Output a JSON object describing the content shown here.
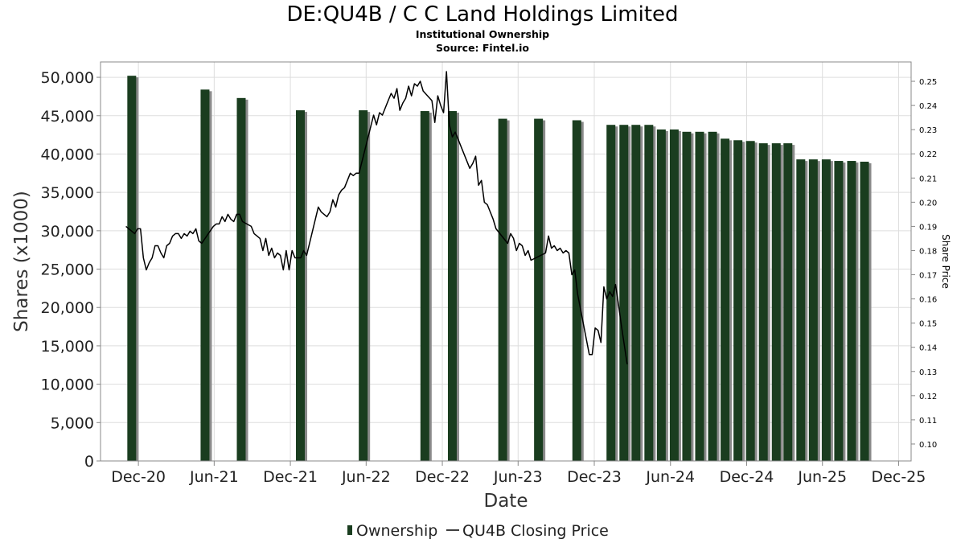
{
  "chart_data": {
    "type": "bar",
    "title": "DE:QU4B / C C Land Holdings Limited",
    "subtitle_1": "Institutional Ownership",
    "subtitle_2": "Source: Fintel.io",
    "xlabel": "Date",
    "ylabel": "Shares (x1000)",
    "y2label": "Share Price",
    "ylim": [
      0,
      52000
    ],
    "y2lim": [
      0.093,
      0.258
    ],
    "x_range": [
      "2020-09-01",
      "2025-12-31"
    ],
    "x_ticks": [
      {
        "date": "2020-12-01",
        "label": "Dec-20"
      },
      {
        "date": "2021-06-01",
        "label": "Jun-21"
      },
      {
        "date": "2021-12-01",
        "label": "Dec-21"
      },
      {
        "date": "2022-06-01",
        "label": "Jun-22"
      },
      {
        "date": "2022-12-01",
        "label": "Dec-22"
      },
      {
        "date": "2023-06-01",
        "label": "Jun-23"
      },
      {
        "date": "2023-12-01",
        "label": "Dec-23"
      },
      {
        "date": "2024-06-01",
        "label": "Jun-24"
      },
      {
        "date": "2024-12-01",
        "label": "Dec-24"
      },
      {
        "date": "2025-06-01",
        "label": "Jun-25"
      },
      {
        "date": "2025-12-01",
        "label": "Dec-25"
      }
    ],
    "y_ticks": [
      {
        "value": 0,
        "label": "0"
      },
      {
        "value": 5000,
        "label": "5,000"
      },
      {
        "value": 10000,
        "label": "10,000"
      },
      {
        "value": 15000,
        "label": "15,000"
      },
      {
        "value": 20000,
        "label": "20,000"
      },
      {
        "value": 25000,
        "label": "25,000"
      },
      {
        "value": 30000,
        "label": "30,000"
      },
      {
        "value": 35000,
        "label": "35,000"
      },
      {
        "value": 40000,
        "label": "40,000"
      },
      {
        "value": 45000,
        "label": "45,000"
      },
      {
        "value": 50000,
        "label": "50,000"
      }
    ],
    "y2_ticks": [
      {
        "value": 0.1,
        "label": "0.10"
      },
      {
        "value": 0.11,
        "label": "0.11"
      },
      {
        "value": 0.12,
        "label": "0.12"
      },
      {
        "value": 0.13,
        "label": "0.13"
      },
      {
        "value": 0.14,
        "label": "0.14"
      },
      {
        "value": 0.15,
        "label": "0.15"
      },
      {
        "value": 0.16,
        "label": "0.16"
      },
      {
        "value": 0.17,
        "label": "0.17"
      },
      {
        "value": 0.18,
        "label": "0.18"
      },
      {
        "value": 0.19,
        "label": "0.19"
      },
      {
        "value": 0.2,
        "label": "0.20"
      },
      {
        "value": 0.21,
        "label": "0.21"
      },
      {
        "value": 0.22,
        "label": "0.22"
      },
      {
        "value": 0.23,
        "label": "0.23"
      },
      {
        "value": 0.24,
        "label": "0.24"
      },
      {
        "value": 0.25,
        "label": "0.25"
      }
    ],
    "grid": true,
    "legend_placement": "bottom-center",
    "colors": {
      "bar": "#1a3d1f",
      "bar_shadow": "#8a8a8a",
      "line": "#000000",
      "grid": "#dddddd",
      "axis": "#888888"
    },
    "series": [
      {
        "name": "Ownership",
        "type": "bar",
        "points": [
          {
            "date": "2020-11-15",
            "value": 50200
          },
          {
            "date": "2021-05-10",
            "value": 48400
          },
          {
            "date": "2021-08-05",
            "value": 47300
          },
          {
            "date": "2021-12-25",
            "value": 45700
          },
          {
            "date": "2022-05-25",
            "value": 45700
          },
          {
            "date": "2022-10-20",
            "value": 45600
          },
          {
            "date": "2022-12-25",
            "value": 45600
          },
          {
            "date": "2023-04-25",
            "value": 44600
          },
          {
            "date": "2023-07-20",
            "value": 44600
          },
          {
            "date": "2023-10-20",
            "value": 44400
          },
          {
            "date": "2024-01-10",
            "value": 43800
          },
          {
            "date": "2024-02-10",
            "value": 43800
          },
          {
            "date": "2024-03-10",
            "value": 43800
          },
          {
            "date": "2024-04-10",
            "value": 43800
          },
          {
            "date": "2024-05-10",
            "value": 43200
          },
          {
            "date": "2024-06-10",
            "value": 43200
          },
          {
            "date": "2024-07-10",
            "value": 42900
          },
          {
            "date": "2024-08-10",
            "value": 42900
          },
          {
            "date": "2024-09-10",
            "value": 42900
          },
          {
            "date": "2024-10-10",
            "value": 42000
          },
          {
            "date": "2024-11-10",
            "value": 41800
          },
          {
            "date": "2024-12-10",
            "value": 41700
          },
          {
            "date": "2025-01-10",
            "value": 41400
          },
          {
            "date": "2025-02-10",
            "value": 41400
          },
          {
            "date": "2025-03-10",
            "value": 41400
          },
          {
            "date": "2025-04-10",
            "value": 39300
          },
          {
            "date": "2025-05-10",
            "value": 39300
          },
          {
            "date": "2025-06-10",
            "value": 39300
          },
          {
            "date": "2025-07-10",
            "value": 39100
          },
          {
            "date": "2025-08-10",
            "value": 39100
          },
          {
            "date": "2025-09-10",
            "value": 39000
          }
        ]
      },
      {
        "name": "QU4B Closing Price",
        "type": "line",
        "points": [
          [
            "2020-11-01",
            0.19
          ],
          [
            "2020-11-22",
            0.187
          ],
          [
            "2020-11-29",
            0.189
          ],
          [
            "2020-12-06",
            0.189
          ],
          [
            "2020-12-13",
            0.177
          ],
          [
            "2020-12-20",
            0.172
          ],
          [
            "2020-12-27",
            0.175
          ],
          [
            "2021-01-03",
            0.177
          ],
          [
            "2021-01-10",
            0.182
          ],
          [
            "2021-01-17",
            0.182
          ],
          [
            "2021-01-24",
            0.179
          ],
          [
            "2021-01-31",
            0.177
          ],
          [
            "2021-02-07",
            0.182
          ],
          [
            "2021-02-14",
            0.183
          ],
          [
            "2021-02-21",
            0.186
          ],
          [
            "2021-02-28",
            0.187
          ],
          [
            "2021-03-07",
            0.187
          ],
          [
            "2021-03-14",
            0.185
          ],
          [
            "2021-03-21",
            0.187
          ],
          [
            "2021-03-28",
            0.186
          ],
          [
            "2021-04-04",
            0.188
          ],
          [
            "2021-04-11",
            0.187
          ],
          [
            "2021-04-18",
            0.189
          ],
          [
            "2021-04-25",
            0.184
          ],
          [
            "2021-05-02",
            0.183
          ],
          [
            "2021-05-30",
            0.19
          ],
          [
            "2021-06-06",
            0.191
          ],
          [
            "2021-06-13",
            0.191
          ],
          [
            "2021-06-20",
            0.194
          ],
          [
            "2021-06-27",
            0.192
          ],
          [
            "2021-07-04",
            0.195
          ],
          [
            "2021-07-11",
            0.193
          ],
          [
            "2021-07-18",
            0.192
          ],
          [
            "2021-07-25",
            0.195
          ],
          [
            "2021-08-01",
            0.195
          ],
          [
            "2021-08-08",
            0.192
          ],
          [
            "2021-08-29",
            0.19
          ],
          [
            "2021-09-05",
            0.187
          ],
          [
            "2021-09-12",
            0.186
          ],
          [
            "2021-09-19",
            0.185
          ],
          [
            "2021-09-26",
            0.18
          ],
          [
            "2021-10-03",
            0.185
          ],
          [
            "2021-10-10",
            0.178
          ],
          [
            "2021-10-17",
            0.181
          ],
          [
            "2021-10-24",
            0.177
          ],
          [
            "2021-10-31",
            0.179
          ],
          [
            "2021-11-07",
            0.178
          ],
          [
            "2021-11-14",
            0.172
          ],
          [
            "2021-11-21",
            0.18
          ],
          [
            "2021-11-28",
            0.172
          ],
          [
            "2021-12-05",
            0.18
          ],
          [
            "2021-12-12",
            0.177
          ],
          [
            "2021-12-19",
            0.177
          ],
          [
            "2021-12-26",
            0.177
          ],
          [
            "2022-01-02",
            0.18
          ],
          [
            "2022-01-09",
            0.178
          ],
          [
            "2022-02-06",
            0.198
          ],
          [
            "2022-02-13",
            0.196
          ],
          [
            "2022-02-20",
            0.195
          ],
          [
            "2022-02-27",
            0.194
          ],
          [
            "2022-03-06",
            0.196
          ],
          [
            "2022-03-13",
            0.201
          ],
          [
            "2022-03-20",
            0.198
          ],
          [
            "2022-03-27",
            0.203
          ],
          [
            "2022-04-03",
            0.205
          ],
          [
            "2022-04-10",
            0.206
          ],
          [
            "2022-04-17",
            0.209
          ],
          [
            "2022-04-24",
            0.212
          ],
          [
            "2022-05-01",
            0.211
          ],
          [
            "2022-05-08",
            0.212
          ],
          [
            "2022-05-15",
            0.212
          ],
          [
            "2022-06-19",
            0.236
          ],
          [
            "2022-06-26",
            0.232
          ],
          [
            "2022-07-03",
            0.237
          ],
          [
            "2022-07-10",
            0.236
          ],
          [
            "2022-07-17",
            0.239
          ],
          [
            "2022-07-24",
            0.242
          ],
          [
            "2022-07-31",
            0.245
          ],
          [
            "2022-08-07",
            0.243
          ],
          [
            "2022-08-14",
            0.247
          ],
          [
            "2022-08-21",
            0.238
          ],
          [
            "2022-08-28",
            0.241
          ],
          [
            "2022-09-04",
            0.243
          ],
          [
            "2022-09-11",
            0.248
          ],
          [
            "2022-09-18",
            0.244
          ],
          [
            "2022-09-25",
            0.249
          ],
          [
            "2022-10-02",
            0.248
          ],
          [
            "2022-10-09",
            0.25
          ],
          [
            "2022-10-16",
            0.246
          ],
          [
            "2022-11-06",
            0.242
          ],
          [
            "2022-11-13",
            0.233
          ],
          [
            "2022-11-20",
            0.244
          ],
          [
            "2022-11-27",
            0.24
          ],
          [
            "2022-12-04",
            0.237
          ],
          [
            "2022-12-11",
            0.254
          ],
          [
            "2022-12-18",
            0.232
          ],
          [
            "2022-12-25",
            0.227
          ],
          [
            "2023-01-01",
            0.229
          ],
          [
            "2023-01-08",
            0.226
          ],
          [
            "2023-02-05",
            0.214
          ],
          [
            "2023-02-12",
            0.216
          ],
          [
            "2023-02-19",
            0.219
          ],
          [
            "2023-02-26",
            0.207
          ],
          [
            "2023-03-05",
            0.209
          ],
          [
            "2023-03-12",
            0.2
          ],
          [
            "2023-03-19",
            0.199
          ],
          [
            "2023-03-26",
            0.196
          ],
          [
            "2023-04-02",
            0.193
          ],
          [
            "2023-04-09",
            0.189
          ],
          [
            "2023-05-07",
            0.183
          ],
          [
            "2023-05-14",
            0.187
          ],
          [
            "2023-05-21",
            0.185
          ],
          [
            "2023-05-28",
            0.18
          ],
          [
            "2023-06-04",
            0.183
          ],
          [
            "2023-06-11",
            0.182
          ],
          [
            "2023-06-18",
            0.178
          ],
          [
            "2023-06-25",
            0.18
          ],
          [
            "2023-07-02",
            0.176
          ],
          [
            "2023-08-06",
            0.179
          ],
          [
            "2023-08-13",
            0.186
          ],
          [
            "2023-08-20",
            0.181
          ],
          [
            "2023-08-27",
            0.182
          ],
          [
            "2023-09-03",
            0.18
          ],
          [
            "2023-09-10",
            0.181
          ],
          [
            "2023-09-17",
            0.179
          ],
          [
            "2023-09-24",
            0.18
          ],
          [
            "2023-10-01",
            0.179
          ],
          [
            "2023-10-08",
            0.17
          ],
          [
            "2023-10-15",
            0.172
          ],
          [
            "2023-10-22",
            0.162
          ],
          [
            "2023-11-19",
            0.137
          ],
          [
            "2023-11-26",
            0.137
          ],
          [
            "2023-12-03",
            0.148
          ],
          [
            "2023-12-10",
            0.147
          ],
          [
            "2023-12-17",
            0.142
          ],
          [
            "2023-12-24",
            0.165
          ],
          [
            "2023-12-31",
            0.16
          ],
          [
            "2024-01-07",
            0.163
          ],
          [
            "2024-01-14",
            0.161
          ],
          [
            "2024-01-21",
            0.166
          ],
          [
            "2024-01-28",
            0.158
          ],
          [
            "2024-02-04",
            0.149
          ],
          [
            "2024-02-11",
            0.141
          ],
          [
            "2024-02-18",
            0.133
          ]
        ]
      }
    ]
  }
}
